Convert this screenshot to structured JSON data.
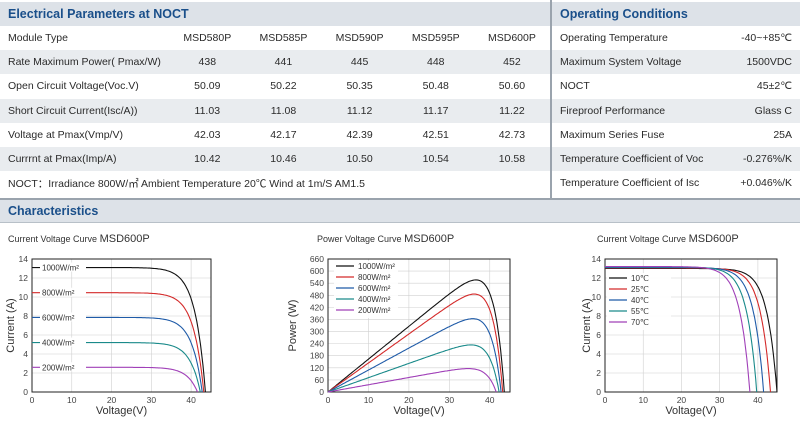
{
  "electrical": {
    "title": "Electrical Parameters at NOCT",
    "header_label": "Module Type",
    "models": [
      "MSD580P",
      "MSD585P",
      "MSD590P",
      "MSD595P",
      "MSD600P"
    ],
    "rows": [
      {
        "label": "Rate Maximum Power( Pmax/W)",
        "values": [
          "438",
          "441",
          "445",
          "448",
          "452"
        ]
      },
      {
        "label": "Open Circuit Voltage(Voc.V)",
        "values": [
          "50.09",
          "50.22",
          "50.35",
          "50.48",
          "50.60"
        ]
      },
      {
        "label": "Short Circuit Current(Isc/A))",
        "values": [
          "11.03",
          "11.08",
          "11.12",
          "11.17",
          "11.22"
        ]
      },
      {
        "label": "Voltage at Pmax(Vmp/V)",
        "values": [
          "42.03",
          "42.17",
          "42.39",
          "42.51",
          "42.73"
        ]
      },
      {
        "label": "Currrnt at Pmax(Imp/A)",
        "values": [
          "10.42",
          "10.46",
          "10.50",
          "10.54",
          "10.58"
        ]
      }
    ],
    "note": "NOCT：Irradiance 800W/㎡ Ambient Temperature 20℃ Wind at 1m/S AM1.5"
  },
  "operating": {
    "title": "Operating Conditions",
    "rows": [
      {
        "label": "Operating Temperature",
        "value": "-40~+85℃"
      },
      {
        "label": "Maximum System Voltage",
        "value": "1500VDC"
      },
      {
        "label": "NOCT",
        "value": "45±2℃"
      },
      {
        "label": "Fireproof  Performance",
        "value": "Glass C"
      },
      {
        "label": "Maximum Series Fuse",
        "value": "25A"
      },
      {
        "label": "Temperature Coefficient of Voc",
        "value": "-0.276%/K"
      },
      {
        "label": "Temperature Coefficient of Isc",
        "value": "+0.046%/K"
      }
    ]
  },
  "characteristics": {
    "title": "Characteristics"
  },
  "chart_data": [
    {
      "type": "line",
      "title_small": "Current Voltage Curve",
      "title_model": "MSD600P",
      "xlabel": "Voltage(V)",
      "ylabel": "Current (A)",
      "xlim": [
        0,
        45
      ],
      "ylim": [
        0,
        14
      ],
      "xticks": [
        0,
        10,
        20,
        30,
        40
      ],
      "yticks": [
        0,
        2,
        4,
        6,
        8,
        10,
        12,
        14
      ],
      "grid": true,
      "legend": "inline",
      "series": [
        {
          "name": "1000W/m²",
          "color": "#111111",
          "isc": 13.1,
          "voc": 43.6
        },
        {
          "name": "800W/m²",
          "color": "#d42a2a",
          "isc": 10.45,
          "voc": 43.2
        },
        {
          "name": "600W/m²",
          "color": "#1f5ba8",
          "isc": 7.85,
          "voc": 42.8
        },
        {
          "name": "400W/m²",
          "color": "#1a8a8a",
          "isc": 5.2,
          "voc": 42.3
        },
        {
          "name": "200W/m²",
          "color": "#a040b8",
          "isc": 2.6,
          "voc": 41.6
        }
      ]
    },
    {
      "type": "line",
      "title_small": "Power Voltage Curve",
      "title_model": "MSD600P",
      "xlabel": "Voltage(V)",
      "ylabel": "Power (W)",
      "xlim": [
        0,
        45
      ],
      "ylim": [
        0,
        660
      ],
      "xticks": [
        0,
        10,
        20,
        30,
        40
      ],
      "yticks": [
        0,
        60,
        120,
        180,
        240,
        300,
        360,
        420,
        480,
        540,
        600,
        660
      ],
      "grid": true,
      "legend": "top-left",
      "series": [
        {
          "name": "1000W/m²",
          "color": "#111111",
          "isc": 16.3,
          "voc": 43.6
        },
        {
          "name": "800W/m²",
          "color": "#d42a2a",
          "isc": 14.4,
          "voc": 43.2
        },
        {
          "name": "600W/m²",
          "color": "#1f5ba8",
          "isc": 10.9,
          "voc": 42.8
        },
        {
          "name": "400W/m²",
          "color": "#1a8a8a",
          "isc": 7.1,
          "voc": 42.3
        },
        {
          "name": "200W/m²",
          "color": "#a040b8",
          "isc": 3.6,
          "voc": 41.6
        }
      ]
    },
    {
      "type": "line",
      "title_small": "Current Voltage Curve",
      "title_model": "MSD600P",
      "xlabel": "Voltage(V)",
      "ylabel": "Current (A)",
      "xlim": [
        0,
        45
      ],
      "ylim": [
        0,
        14
      ],
      "xticks": [
        0,
        10,
        20,
        30,
        40
      ],
      "yticks": [
        0,
        2,
        4,
        6,
        8,
        10,
        12,
        14
      ],
      "grid": true,
      "legend": "left",
      "series": [
        {
          "name": "10℃",
          "color": "#111111",
          "isc": 13.0,
          "voc": 45.0
        },
        {
          "name": "25℃",
          "color": "#d42a2a",
          "isc": 13.05,
          "voc": 43.3
        },
        {
          "name": "40℃",
          "color": "#1f5ba8",
          "isc": 13.1,
          "voc": 41.5
        },
        {
          "name": "55℃",
          "color": "#1a8a8a",
          "isc": 13.15,
          "voc": 39.7
        },
        {
          "name": "70℃",
          "color": "#a040b8",
          "isc": 13.2,
          "voc": 37.9
        }
      ]
    }
  ]
}
